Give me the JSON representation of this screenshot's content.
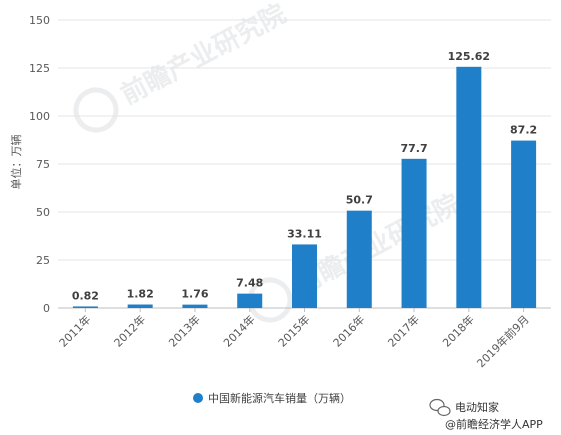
{
  "chart_data": {
    "type": "bar",
    "categories": [
      "2011年",
      "2012年",
      "2013年",
      "2014年",
      "2015年",
      "2016年",
      "2017年",
      "2018年",
      "2019年前9月"
    ],
    "series": [
      {
        "name": "中国新能源汽车销量（万辆）",
        "values": [
          0.82,
          1.82,
          1.76,
          7.48,
          33.11,
          50.7,
          77.7,
          125.62,
          87.2
        ],
        "labels": [
          "0.82",
          "1.82",
          "1.76",
          "7.48",
          "33.11",
          "50.7",
          "77.7",
          "125.62",
          "87.2"
        ],
        "color": "#1f7fc9"
      }
    ],
    "title": "",
    "xlabel": "",
    "ylabel": "单位：万辆",
    "ylim": [
      0,
      150
    ],
    "yticks": [
      0,
      25,
      50,
      75,
      100,
      125,
      150
    ],
    "grid": true,
    "legend_position": "bottom-center"
  },
  "watermark": {
    "brand": "前瞻产业研究院"
  },
  "footer": {
    "line1": "电动知家",
    "line2": "@前瞻经济学人APP"
  }
}
